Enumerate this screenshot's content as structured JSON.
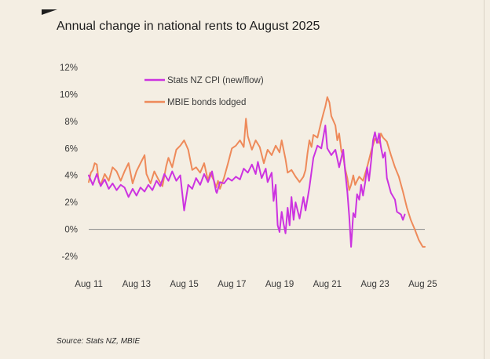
{
  "title": "Annual change in national rents to August 2025",
  "source": "Source: Stats NZ, MBIE",
  "chart_data": {
    "type": "line",
    "title": "Annual change in national rents to August 2025",
    "xlabel": "",
    "ylabel": "",
    "x_ticks": [
      "Aug 11",
      "Aug 13",
      "Aug 15",
      "Aug 17",
      "Aug 19",
      "Aug 21",
      "Aug 23",
      "Aug 25"
    ],
    "y_ticks": [
      "12%",
      "10%",
      "8%",
      "6%",
      "4%",
      "2%",
      "0%",
      "-2%"
    ],
    "xlim": [
      2011.58,
      2025.67
    ],
    "ylim": [
      -2,
      12
    ],
    "grid": false,
    "zero_line": true,
    "legend_position": "top-left",
    "series": [
      {
        "name": "Stats NZ CPI (new/flow)",
        "color": "#cc33e0",
        "points": [
          [
            2011.58,
            4.0
          ],
          [
            2011.75,
            3.3
          ],
          [
            2011.92,
            4.1
          ],
          [
            2012.08,
            3.2
          ],
          [
            2012.25,
            3.7
          ],
          [
            2012.42,
            3.0
          ],
          [
            2012.58,
            3.4
          ],
          [
            2012.75,
            2.9
          ],
          [
            2012.92,
            3.3
          ],
          [
            2013.08,
            3.1
          ],
          [
            2013.25,
            2.4
          ],
          [
            2013.42,
            3.0
          ],
          [
            2013.58,
            2.5
          ],
          [
            2013.75,
            3.1
          ],
          [
            2013.92,
            2.8
          ],
          [
            2014.08,
            3.3
          ],
          [
            2014.25,
            2.9
          ],
          [
            2014.42,
            3.6
          ],
          [
            2014.58,
            3.2
          ],
          [
            2014.75,
            4.1
          ],
          [
            2014.92,
            3.6
          ],
          [
            2015.08,
            4.3
          ],
          [
            2015.25,
            3.6
          ],
          [
            2015.42,
            4.0
          ],
          [
            2015.58,
            1.4
          ],
          [
            2015.75,
            3.3
          ],
          [
            2015.92,
            3.0
          ],
          [
            2016.08,
            3.8
          ],
          [
            2016.25,
            3.3
          ],
          [
            2016.42,
            4.1
          ],
          [
            2016.58,
            3.5
          ],
          [
            2016.75,
            4.3
          ],
          [
            2016.92,
            2.8
          ],
          [
            2016.95,
            2.7
          ],
          [
            2017.08,
            3.5
          ],
          [
            2017.25,
            3.4
          ],
          [
            2017.42,
            3.8
          ],
          [
            2017.58,
            3.6
          ],
          [
            2017.75,
            3.9
          ],
          [
            2017.92,
            3.7
          ],
          [
            2018.08,
            4.5
          ],
          [
            2018.25,
            4.2
          ],
          [
            2018.42,
            4.8
          ],
          [
            2018.58,
            4.1
          ],
          [
            2018.67,
            5.0
          ],
          [
            2018.83,
            3.8
          ],
          [
            2019.0,
            4.5
          ],
          [
            2019.08,
            3.5
          ],
          [
            2019.25,
            4.2
          ],
          [
            2019.33,
            2.1
          ],
          [
            2019.42,
            3.3
          ],
          [
            2019.5,
            0.3
          ],
          [
            2019.58,
            -0.2
          ],
          [
            2019.67,
            1.3
          ],
          [
            2019.75,
            0.4
          ],
          [
            2019.83,
            -0.3
          ],
          [
            2019.92,
            1.6
          ],
          [
            2020.0,
            0.3
          ],
          [
            2020.08,
            2.4
          ],
          [
            2020.17,
            0.7
          ],
          [
            2020.25,
            2.0
          ],
          [
            2020.42,
            0.8
          ],
          [
            2020.58,
            2.4
          ],
          [
            2020.67,
            1.4
          ],
          [
            2020.83,
            3.1
          ],
          [
            2021.0,
            5.3
          ],
          [
            2021.17,
            6.2
          ],
          [
            2021.33,
            6.0
          ],
          [
            2021.5,
            7.7
          ],
          [
            2021.58,
            6.0
          ],
          [
            2021.75,
            5.5
          ],
          [
            2021.92,
            5.9
          ],
          [
            2022.08,
            4.6
          ],
          [
            2022.25,
            5.9
          ],
          [
            2022.33,
            4.3
          ],
          [
            2022.42,
            2.8
          ],
          [
            2022.5,
            1.0
          ],
          [
            2022.58,
            -1.3
          ],
          [
            2022.67,
            1.2
          ],
          [
            2022.75,
            0.9
          ],
          [
            2022.83,
            2.6
          ],
          [
            2022.92,
            2.2
          ],
          [
            2023.0,
            3.3
          ],
          [
            2023.08,
            2.5
          ],
          [
            2023.17,
            3.5
          ],
          [
            2023.25,
            4.6
          ],
          [
            2023.33,
            3.6
          ],
          [
            2023.42,
            5.1
          ],
          [
            2023.5,
            6.6
          ],
          [
            2023.58,
            7.2
          ],
          [
            2023.67,
            6.4
          ],
          [
            2023.75,
            7.1
          ],
          [
            2023.83,
            6.1
          ],
          [
            2023.92,
            5.3
          ],
          [
            2024.0,
            5.7
          ],
          [
            2024.08,
            3.8
          ],
          [
            2024.25,
            2.7
          ],
          [
            2024.42,
            2.2
          ],
          [
            2024.5,
            1.3
          ],
          [
            2024.67,
            1.1
          ],
          [
            2024.75,
            0.7
          ],
          [
            2024.83,
            1.1
          ]
        ]
      },
      {
        "name": "MBIE bonds lodged",
        "color": "#ee8a5a",
        "points": [
          [
            2011.58,
            3.5
          ],
          [
            2011.67,
            4.2
          ],
          [
            2011.75,
            4.4
          ],
          [
            2011.83,
            4.9
          ],
          [
            2011.92,
            4.8
          ],
          [
            2012.0,
            3.5
          ],
          [
            2012.08,
            3.3
          ],
          [
            2012.25,
            4.1
          ],
          [
            2012.42,
            3.6
          ],
          [
            2012.58,
            4.6
          ],
          [
            2012.75,
            4.3
          ],
          [
            2012.92,
            3.6
          ],
          [
            2013.08,
            4.3
          ],
          [
            2013.25,
            4.9
          ],
          [
            2013.42,
            3.4
          ],
          [
            2013.58,
            4.3
          ],
          [
            2013.75,
            4.9
          ],
          [
            2013.92,
            5.5
          ],
          [
            2014.0,
            4.1
          ],
          [
            2014.17,
            3.4
          ],
          [
            2014.33,
            4.3
          ],
          [
            2014.5,
            3.7
          ],
          [
            2014.67,
            3.2
          ],
          [
            2014.83,
            4.7
          ],
          [
            2014.92,
            5.3
          ],
          [
            2015.08,
            4.6
          ],
          [
            2015.25,
            5.9
          ],
          [
            2015.42,
            6.2
          ],
          [
            2015.58,
            6.6
          ],
          [
            2015.75,
            5.9
          ],
          [
            2015.92,
            4.4
          ],
          [
            2016.08,
            4.6
          ],
          [
            2016.25,
            4.2
          ],
          [
            2016.42,
            4.9
          ],
          [
            2016.58,
            3.6
          ],
          [
            2016.67,
            4.2
          ],
          [
            2016.83,
            3.6
          ],
          [
            2016.92,
            3.1
          ],
          [
            2017.0,
            3.6
          ],
          [
            2017.08,
            3.0
          ],
          [
            2017.25,
            3.8
          ],
          [
            2017.42,
            4.9
          ],
          [
            2017.58,
            6.0
          ],
          [
            2017.75,
            6.2
          ],
          [
            2017.92,
            6.6
          ],
          [
            2018.08,
            6.1
          ],
          [
            2018.17,
            8.2
          ],
          [
            2018.25,
            6.9
          ],
          [
            2018.42,
            5.9
          ],
          [
            2018.58,
            6.6
          ],
          [
            2018.75,
            6.1
          ],
          [
            2018.92,
            4.9
          ],
          [
            2019.08,
            5.9
          ],
          [
            2019.25,
            5.5
          ],
          [
            2019.42,
            6.2
          ],
          [
            2019.58,
            5.7
          ],
          [
            2019.67,
            6.6
          ],
          [
            2019.83,
            5.2
          ],
          [
            2019.92,
            4.2
          ],
          [
            2020.08,
            4.4
          ],
          [
            2020.25,
            3.9
          ],
          [
            2020.42,
            3.5
          ],
          [
            2020.58,
            3.9
          ],
          [
            2020.67,
            4.4
          ],
          [
            2020.75,
            5.6
          ],
          [
            2020.83,
            6.6
          ],
          [
            2020.92,
            6.1
          ],
          [
            2021.0,
            7.0
          ],
          [
            2021.17,
            6.8
          ],
          [
            2021.33,
            8.0
          ],
          [
            2021.42,
            8.6
          ],
          [
            2021.5,
            9.1
          ],
          [
            2021.58,
            9.8
          ],
          [
            2021.67,
            9.4
          ],
          [
            2021.75,
            8.4
          ],
          [
            2021.92,
            7.7
          ],
          [
            2022.0,
            6.6
          ],
          [
            2022.08,
            7.1
          ],
          [
            2022.17,
            5.8
          ],
          [
            2022.25,
            5.4
          ],
          [
            2022.33,
            4.5
          ],
          [
            2022.42,
            3.8
          ],
          [
            2022.5,
            2.9
          ],
          [
            2022.58,
            3.3
          ],
          [
            2022.67,
            4.0
          ],
          [
            2022.75,
            3.3
          ],
          [
            2022.83,
            3.6
          ],
          [
            2022.92,
            3.9
          ],
          [
            2023.08,
            3.6
          ],
          [
            2023.25,
            4.6
          ],
          [
            2023.42,
            5.8
          ],
          [
            2023.58,
            6.7
          ],
          [
            2023.75,
            6.4
          ],
          [
            2023.83,
            7.1
          ],
          [
            2023.92,
            6.8
          ],
          [
            2024.08,
            6.5
          ],
          [
            2024.25,
            5.5
          ],
          [
            2024.42,
            4.6
          ],
          [
            2024.58,
            3.9
          ],
          [
            2024.75,
            2.8
          ],
          [
            2024.92,
            1.6
          ],
          [
            2025.08,
            0.7
          ],
          [
            2025.25,
            0.0
          ],
          [
            2025.42,
            -0.8
          ],
          [
            2025.58,
            -1.3
          ],
          [
            2025.67,
            -1.3
          ]
        ]
      }
    ]
  }
}
